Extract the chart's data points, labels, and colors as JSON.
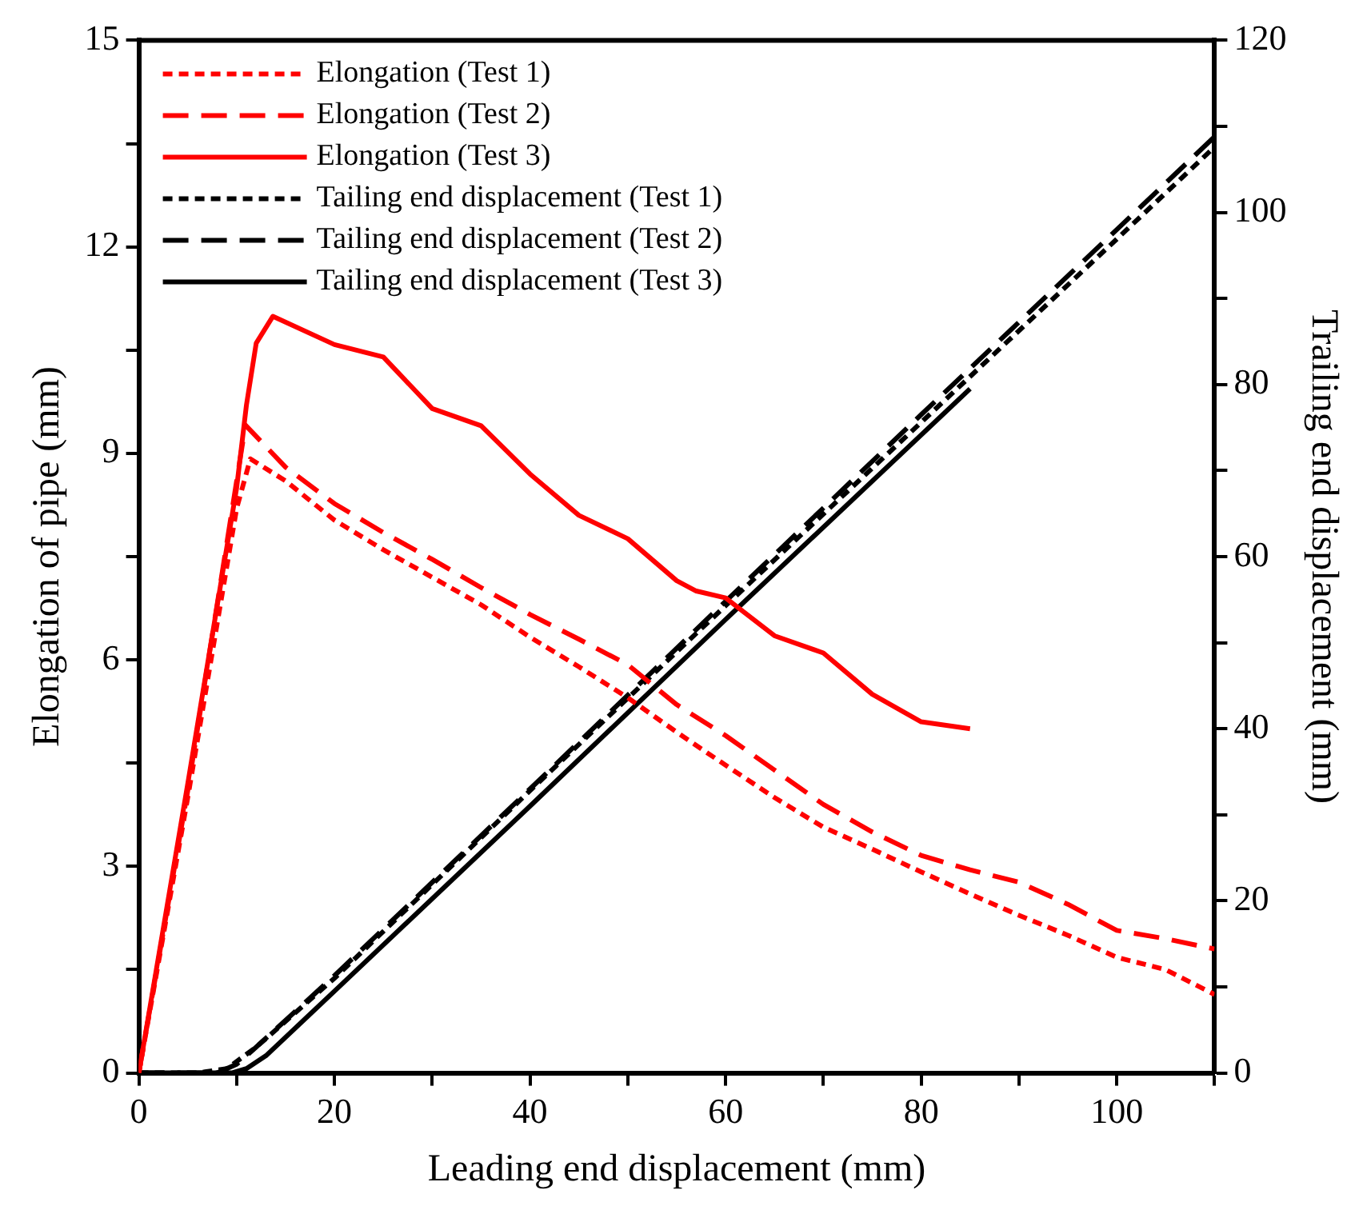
{
  "chart_data": {
    "type": "line",
    "xlabel": "Leading end displacement (mm)",
    "ylabel": "Elongation of pipe (mm)",
    "y2label": "Trailing end displacement (mm)",
    "xlim": [
      0,
      110
    ],
    "xticks": [
      0,
      {
        "value": 10,
        "label": null
      },
      20,
      {
        "value": 30,
        "label": null
      },
      40,
      {
        "value": 50,
        "label": null
      },
      60,
      {
        "value": 70,
        "label": null
      },
      80,
      {
        "value": 90,
        "label": null
      },
      100,
      {
        "value": 110,
        "label": null
      }
    ],
    "ylim": [
      0,
      15
    ],
    "yticks": [
      0,
      {
        "value": 1.5,
        "label": null
      },
      3,
      {
        "value": 4.5,
        "label": null
      },
      6,
      {
        "value": 7.5,
        "label": null
      },
      9,
      {
        "value": 10.5,
        "label": null
      },
      12,
      {
        "value": 13.5,
        "label": null
      },
      15
    ],
    "y2lim": [
      0,
      120
    ],
    "y2ticks": [
      0,
      {
        "value": 10,
        "label": null
      },
      20,
      {
        "value": 30,
        "label": null
      },
      40,
      {
        "value": 50,
        "label": null
      },
      60,
      {
        "value": 70,
        "label": null
      },
      80,
      {
        "value": 90,
        "label": null
      },
      100,
      {
        "value": 110,
        "label": null
      },
      120
    ],
    "grid": false,
    "legend": "top left",
    "marker": "none",
    "series": [
      {
        "name": "Elongation (Test 1)",
        "color": "#ff0000",
        "line_style": "dotted",
        "x": [
          0,
          5,
          10,
          11.4,
          15,
          20,
          25,
          30,
          35,
          40,
          45,
          50,
          55,
          60,
          65,
          70,
          75,
          80,
          85,
          90,
          95,
          100,
          105,
          110
        ],
        "values": [
          0,
          4.0,
          8.2,
          8.92,
          8.6,
          8.03,
          7.6,
          7.2,
          6.8,
          6.33,
          5.9,
          5.45,
          4.95,
          4.47,
          4.0,
          3.57,
          3.25,
          2.92,
          2.6,
          2.29,
          2.0,
          1.68,
          1.5,
          1.14
        ]
      },
      {
        "name": "Elongation (Test 2)",
        "color": "#ff0000",
        "line_style": "dashed",
        "x": [
          0,
          5,
          10,
          10.9,
          15,
          20,
          25,
          30,
          35,
          40,
          45,
          50,
          55,
          60,
          65,
          70,
          75,
          80,
          85,
          90,
          95,
          100,
          105,
          110
        ],
        "values": [
          0,
          4.1,
          8.6,
          9.41,
          8.8,
          8.27,
          7.85,
          7.46,
          7.05,
          6.66,
          6.3,
          5.93,
          5.35,
          4.9,
          4.4,
          3.9,
          3.5,
          3.16,
          2.95,
          2.77,
          2.45,
          2.07,
          1.95,
          1.8
        ]
      },
      {
        "name": "Elongation (Test 3)",
        "color": "#ff0000",
        "line_style": "solid",
        "x": [
          0,
          5,
          10,
          11,
          12,
          13.7,
          20,
          25,
          30,
          35,
          40,
          45,
          50,
          55,
          57,
          60,
          65,
          70,
          75,
          80,
          85
        ],
        "values": [
          0,
          4.2,
          8.5,
          9.7,
          10.6,
          10.99,
          10.58,
          10.4,
          9.65,
          9.4,
          8.7,
          8.1,
          7.76,
          7.15,
          7.0,
          6.9,
          6.35,
          6.1,
          5.5,
          5.1,
          5.0
        ]
      },
      {
        "name": "Tailing end displacement (Test 1)",
        "color": "#000000",
        "line_style": "dotted",
        "axis": "y2",
        "x": [
          0,
          6,
          9,
          12,
          20,
          40,
          60,
          80,
          100,
          110
        ],
        "values": [
          0,
          0,
          0.5,
          3,
          11,
          32.8,
          54.3,
          75.6,
          96.9,
          107.6
        ]
      },
      {
        "name": "Tailing end displacement (Test 2)",
        "color": "#000000",
        "line_style": "dashed",
        "axis": "y2",
        "x": [
          0,
          8,
          10,
          12,
          20,
          40,
          60,
          80,
          100,
          110
        ],
        "values": [
          0,
          0,
          1,
          3,
          11.3,
          33,
          54.8,
          76.5,
          98,
          108.8
        ]
      },
      {
        "name": "Tailing end displacement (Test 3)",
        "color": "#000000",
        "line_style": "solid",
        "axis": "y2",
        "x": [
          0,
          9.5,
          11,
          13,
          20,
          40,
          60,
          85
        ],
        "values": [
          0,
          0,
          0.5,
          2,
          9.5,
          31,
          52.7,
          79.5
        ]
      }
    ]
  }
}
